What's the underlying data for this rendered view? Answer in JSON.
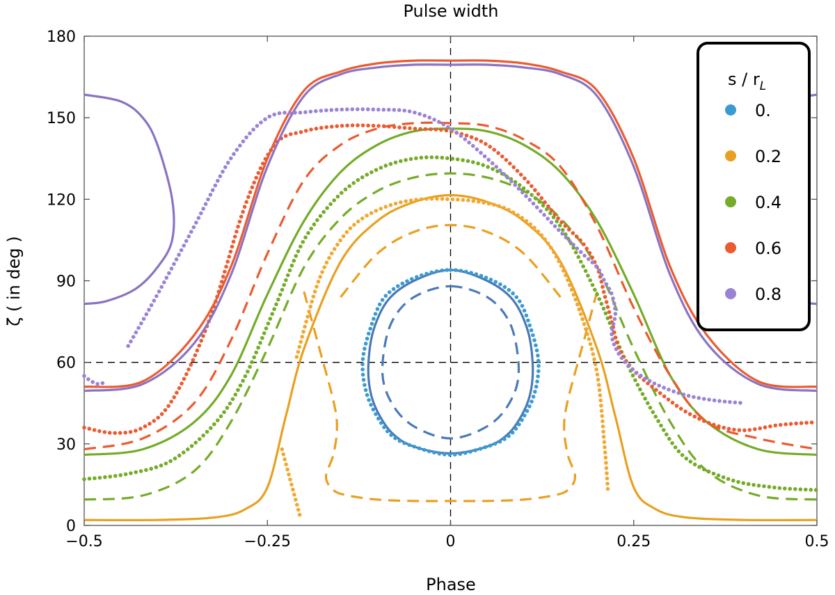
{
  "chart_data": {
    "type": "line",
    "title": "Pulse width",
    "xlabel": "Phase",
    "ylabel": "ζ ( in deg )",
    "xlim": [
      -0.5,
      0.5
    ],
    "ylim": [
      0,
      180
    ],
    "xticks": [
      -0.5,
      -0.25,
      0,
      0.25,
      0.5
    ],
    "xtick_labels": [
      "−0.5",
      "−0.25",
      "0",
      "0.25",
      "0.5"
    ],
    "yticks": [
      0,
      30,
      60,
      90,
      120,
      150,
      180
    ],
    "ytick_labels": [
      "0",
      "30",
      "60",
      "90",
      "120",
      "150",
      "180"
    ],
    "reference_lines": {
      "x": 0,
      "y": 60,
      "style": "dashed"
    },
    "legend": {
      "title": "s / r",
      "title_subscript": "L",
      "placement": "top-right",
      "entries": [
        {
          "label": "0.",
          "color": "#3a9bd0"
        },
        {
          "label": "0.2",
          "color": "#e8a020"
        },
        {
          "label": "0.4",
          "color": "#74ab28"
        },
        {
          "label": "0.6",
          "color": "#ea5b30"
        },
        {
          "label": "0.8",
          "color": "#9a82d6"
        }
      ]
    },
    "series": [
      {
        "name": "0. solid",
        "color": "#4a79b8",
        "style": "solid",
        "closed": true,
        "x": [
          0,
          0.05,
          0.085,
          0.105,
          0.112,
          0.11,
          0.1,
          0.08,
          0.05,
          0,
          -0.05,
          -0.08,
          -0.1,
          -0.11,
          -0.112,
          -0.105,
          -0.085,
          -0.05
        ],
        "y": [
          94,
          90,
          83,
          72,
          60,
          50,
          42,
          34,
          29,
          26.5,
          29,
          34,
          42,
          50,
          60,
          72,
          83,
          90
        ]
      },
      {
        "name": "0. dashed",
        "color": "#4a79b8",
        "style": "dashed",
        "closed": true,
        "x": [
          0,
          0.05,
          0.08,
          0.092,
          0.09,
          0.07,
          0.04,
          0,
          -0.04,
          -0.07,
          -0.09,
          -0.092,
          -0.08,
          -0.05
        ],
        "y": [
          88,
          84,
          75,
          62,
          51,
          41,
          35,
          32,
          35,
          41,
          51,
          62,
          75,
          84
        ]
      },
      {
        "name": "0. dots",
        "color": "#3a9bd0",
        "style": "dots",
        "closed": true,
        "x": [
          0,
          0.05,
          0.09,
          0.11,
          0.12,
          0.115,
          0.1,
          0.08,
          0.05,
          0,
          -0.05,
          -0.08,
          -0.1,
          -0.115,
          -0.12,
          -0.11,
          -0.09,
          -0.05
        ],
        "y": [
          94,
          91,
          84,
          72,
          60,
          49,
          40,
          33,
          29,
          26,
          29,
          33,
          40,
          49,
          60,
          72,
          84,
          91
        ]
      },
      {
        "name": "0.2 solid",
        "color": "#e8a020",
        "style": "solid",
        "x": [
          -0.5,
          -0.4,
          -0.32,
          -0.28,
          -0.25,
          -0.225,
          -0.2,
          -0.15,
          -0.1,
          -0.05,
          0,
          0.05,
          0.1,
          0.15,
          0.2,
          0.225,
          0.25,
          0.28,
          0.32,
          0.4,
          0.5
        ],
        "y": [
          2,
          2,
          3,
          6,
          14,
          40,
          65,
          97,
          112,
          119,
          121.5,
          119,
          112,
          97,
          65,
          40,
          14,
          6,
          3,
          2,
          2
        ]
      },
      {
        "name": "0.2 dashed",
        "color": "#e8a020",
        "style": "dashed",
        "x": [
          -0.2,
          -0.18,
          -0.16,
          -0.155,
          -0.16,
          -0.17,
          -0.16,
          -0.14,
          -0.1,
          -0.05,
          0,
          0.05,
          0.1,
          0.14,
          0.16,
          0.17,
          0.16,
          0.155,
          0.16,
          0.18,
          0.2
        ],
        "y": [
          86,
          66,
          46,
          36,
          26,
          18,
          13,
          11,
          9.5,
          9,
          9,
          9,
          9.5,
          11,
          13,
          18,
          26,
          36,
          46,
          66,
          86
        ]
      },
      {
        "name": "0.2 dashed top",
        "color": "#e8a020",
        "style": "dashed",
        "x": [
          -0.15,
          -0.1,
          -0.05,
          0,
          0.05,
          0.1,
          0.15
        ],
        "y": [
          84,
          100,
          108,
          110.5,
          108,
          100,
          84
        ]
      },
      {
        "name": "0.2 dots",
        "color": "#f0a830",
        "style": "dots",
        "x": [
          -0.21,
          -0.18,
          -0.15,
          -0.12,
          -0.08,
          -0.04,
          0,
          0.04,
          0.08,
          0.12,
          0.15,
          0.18,
          0.2,
          0.21,
          0.215
        ],
        "y": [
          62,
          90,
          105,
          113,
          118,
          120,
          120,
          119,
          116,
          108,
          96,
          76,
          56,
          30,
          12
        ]
      },
      {
        "name": "0.2 dots low",
        "color": "#f0a830",
        "style": "dots",
        "x": [
          -0.23,
          -0.22,
          -0.21,
          -0.205
        ],
        "y": [
          28,
          18,
          8,
          3
        ]
      },
      {
        "name": "0.4 solid",
        "color": "#74ab28",
        "style": "solid",
        "x": [
          -0.5,
          -0.42,
          -0.35,
          -0.3,
          -0.25,
          -0.2,
          -0.15,
          -0.1,
          -0.05,
          0,
          0.05,
          0.1,
          0.15,
          0.2,
          0.25,
          0.3,
          0.35,
          0.42,
          0.5
        ],
        "y": [
          26,
          28,
          38,
          55,
          85,
          112,
          130,
          140,
          145,
          146,
          145,
          140,
          130,
          112,
          85,
          55,
          38,
          28,
          26
        ]
      },
      {
        "name": "0.4 dashed",
        "color": "#74ab28",
        "style": "dashed",
        "x": [
          -0.5,
          -0.42,
          -0.35,
          -0.3,
          -0.25,
          -0.2,
          -0.15,
          -0.1,
          -0.05,
          0,
          0.05,
          0.1,
          0.15,
          0.2,
          0.25,
          0.3,
          0.35,
          0.42,
          0.5
        ],
        "y": [
          9.5,
          11,
          20,
          38,
          65,
          95,
          113,
          123,
          128,
          129.5,
          128,
          123,
          113,
          95,
          65,
          38,
          20,
          11,
          9.5
        ]
      },
      {
        "name": "0.4 dots",
        "color": "#74ab28",
        "style": "dots",
        "x": [
          -0.5,
          -0.44,
          -0.38,
          -0.32,
          -0.28,
          -0.24,
          -0.2,
          -0.15,
          -0.1,
          -0.05,
          0,
          0.05,
          0.1,
          0.15,
          0.2,
          0.24,
          0.28,
          0.32,
          0.38,
          0.44,
          0.5
        ],
        "y": [
          17,
          19,
          24,
          38,
          55,
          80,
          105,
          122,
          131,
          135,
          135,
          132,
          124,
          110,
          85,
          60,
          40,
          25,
          17,
          14,
          13
        ]
      },
      {
        "name": "0.6 solid",
        "color": "#ea5b30",
        "style": "solid",
        "x": [
          -0.5,
          -0.42,
          -0.35,
          -0.3,
          -0.25,
          -0.2,
          -0.15,
          -0.1,
          -0.05,
          0,
          0.05,
          0.1,
          0.15,
          0.2,
          0.25,
          0.3,
          0.35,
          0.42,
          0.5
        ],
        "y": [
          51,
          53,
          70,
          95,
          135,
          160,
          167,
          170,
          171,
          171,
          171,
          170,
          167,
          160,
          135,
          95,
          70,
          53,
          51
        ]
      },
      {
        "name": "0.6 dashed",
        "color": "#ea5b30",
        "style": "dashed",
        "x": [
          -0.5,
          -0.42,
          -0.35,
          -0.3,
          -0.25,
          -0.2,
          -0.15,
          -0.1,
          -0.05,
          0,
          0.05,
          0.1,
          0.15,
          0.2,
          0.25,
          0.3,
          0.35,
          0.42,
          0.5
        ],
        "y": [
          28,
          32,
          45,
          68,
          100,
          127,
          140,
          146,
          148,
          148,
          147,
          142,
          132,
          110,
          80,
          55,
          38,
          32,
          28
        ]
      },
      {
        "name": "0.6 dots",
        "color": "#ea5b30",
        "style": "dots",
        "x": [
          -0.5,
          -0.46,
          -0.42,
          -0.38,
          -0.33,
          -0.28,
          -0.24,
          -0.2,
          -0.15,
          -0.1,
          -0.05,
          0,
          0.05,
          0.1,
          0.15,
          0.18,
          0.2,
          0.21,
          0.22,
          0.23,
          0.25,
          0.28,
          0.32,
          0.36,
          0.4,
          0.45,
          0.5
        ],
        "y": [
          36,
          34,
          36,
          46,
          75,
          118,
          140,
          145,
          147,
          147,
          146,
          145,
          140,
          128,
          112,
          104,
          95,
          85,
          75,
          65,
          57,
          50,
          42,
          37,
          35,
          37,
          38
        ]
      },
      {
        "name": "0.8 solid",
        "color": "#8a72c4",
        "style": "solid",
        "x": [
          -0.5,
          -0.42,
          -0.35,
          -0.3,
          -0.25,
          -0.2,
          -0.15,
          -0.1,
          -0.05,
          0,
          0.05,
          0.1,
          0.15,
          0.2,
          0.25,
          0.3,
          0.35,
          0.42,
          0.5
        ],
        "y": [
          49.5,
          52,
          67,
          92,
          132,
          158,
          166,
          168.5,
          169.5,
          169.5,
          169.5,
          168.5,
          166,
          158,
          132,
          92,
          67,
          52,
          49.5
        ]
      },
      {
        "name": "0.8 solid left lobe",
        "color": "#8a72c4",
        "style": "solid",
        "x": [
          -0.5,
          -0.45,
          -0.42,
          -0.4,
          -0.38,
          -0.38,
          -0.4,
          -0.43,
          -0.47,
          -0.5
        ],
        "y": [
          158.5,
          156,
          150,
          140,
          120,
          105,
          95,
          87,
          82.5,
          81.5
        ]
      },
      {
        "name": "0.8 solid right lobe",
        "color": "#8a72c4",
        "style": "solid",
        "x": [
          0.5,
          0.45,
          0.42,
          0.4,
          0.38,
          0.38,
          0.4,
          0.43,
          0.47,
          0.5
        ],
        "y": [
          158.5,
          156,
          150,
          140,
          120,
          105,
          95,
          87,
          82.5,
          81.5
        ]
      },
      {
        "name": "0.8 dots",
        "color": "#9a82d6",
        "style": "dots",
        "x": [
          -0.44,
          -0.4,
          -0.35,
          -0.3,
          -0.25,
          -0.2,
          -0.15,
          -0.1,
          -0.05,
          0,
          0.05,
          0.1,
          0.15,
          0.18,
          0.2,
          0.21,
          0.22,
          0.225,
          0.22,
          0.23,
          0.25,
          0.28,
          0.32,
          0.36,
          0.4
        ],
        "y": [
          66,
          85,
          110,
          135,
          150,
          152,
          153,
          153,
          152,
          146,
          135,
          122,
          108,
          100,
          95,
          90,
          85,
          78,
          70,
          63,
          57,
          52,
          48,
          46,
          45
        ]
      },
      {
        "name": "0.8 dots left edge",
        "color": "#9a82d6",
        "style": "dots",
        "x": [
          -0.5,
          -0.49,
          -0.48,
          -0.47
        ],
        "y": [
          55,
          53,
          52,
          53
        ]
      }
    ]
  }
}
